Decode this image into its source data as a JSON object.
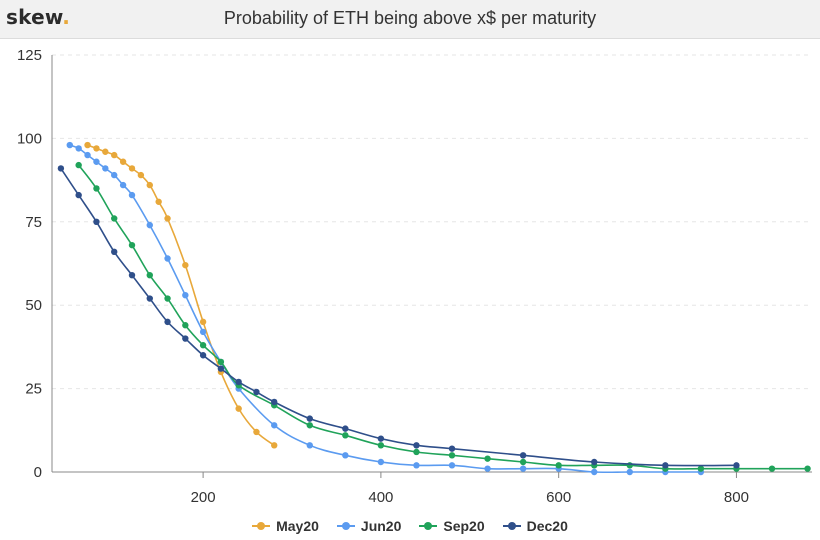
{
  "header": {
    "logo_text": "skew",
    "logo_dot": ".",
    "title": "Probability of ETH being above x$ per maturity"
  },
  "colors": {
    "May20": "#e8a83a",
    "Jun20": "#5b9bf0",
    "Sep20": "#20a35a",
    "Dec20": "#2f4f8a",
    "axis": "#888888",
    "grid": "#e6e6e6"
  },
  "chart_data": {
    "type": "line",
    "title": "Probability of ETH being above x$ per maturity",
    "xlabel": "",
    "ylabel": "",
    "xlim": [
      30,
      885
    ],
    "ylim": [
      0,
      125
    ],
    "x_ticks": [
      200,
      400,
      600,
      800
    ],
    "y_ticks": [
      0,
      25,
      50,
      75,
      100,
      125
    ],
    "grid": "horizontal-dashed",
    "legend_position": "bottom",
    "series": [
      {
        "name": "May20",
        "x": [
          70,
          80,
          90,
          100,
          110,
          120,
          130,
          140,
          150,
          160,
          180,
          200,
          220,
          240,
          260,
          280
        ],
        "y": [
          98,
          97,
          96,
          95,
          93,
          91,
          89,
          86,
          81,
          76,
          62,
          45,
          30,
          19,
          12,
          8
        ]
      },
      {
        "name": "Jun20",
        "x": [
          50,
          60,
          70,
          80,
          90,
          100,
          110,
          120,
          140,
          160,
          180,
          200,
          220,
          240,
          280,
          320,
          360,
          400,
          440,
          480,
          520,
          560,
          600,
          640,
          680,
          720,
          760
        ],
        "y": [
          98,
          97,
          95,
          93,
          91,
          89,
          86,
          83,
          74,
          64,
          53,
          42,
          33,
          25,
          14,
          8,
          5,
          3,
          2,
          2,
          1,
          1,
          1,
          0,
          0,
          0,
          0
        ]
      },
      {
        "name": "Sep20",
        "x": [
          60,
          80,
          100,
          120,
          140,
          160,
          180,
          200,
          220,
          240,
          280,
          320,
          360,
          400,
          440,
          480,
          520,
          560,
          600,
          640,
          680,
          720,
          760,
          800,
          840,
          880
        ],
        "y": [
          92,
          85,
          76,
          68,
          59,
          52,
          44,
          38,
          33,
          26,
          20,
          14,
          11,
          8,
          6,
          5,
          4,
          3,
          2,
          2,
          2,
          1,
          1,
          1,
          1,
          1
        ]
      },
      {
        "name": "Dec20",
        "x": [
          40,
          60,
          80,
          100,
          120,
          140,
          160,
          180,
          200,
          220,
          240,
          260,
          280,
          320,
          360,
          400,
          440,
          480,
          560,
          640,
          720,
          800
        ],
        "y": [
          91,
          83,
          75,
          66,
          59,
          52,
          45,
          40,
          35,
          31,
          27,
          24,
          21,
          16,
          13,
          10,
          8,
          7,
          5,
          3,
          2,
          2
        ]
      }
    ]
  }
}
